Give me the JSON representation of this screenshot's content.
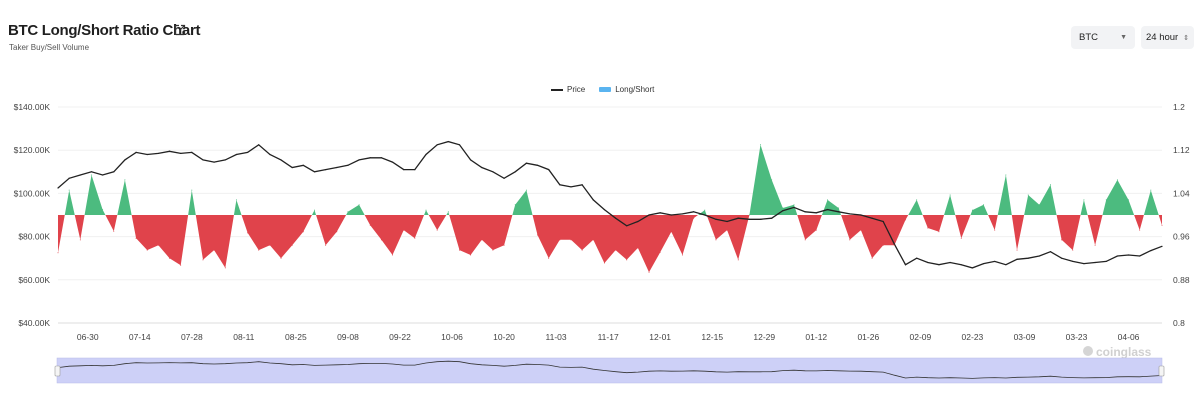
{
  "header": {
    "title": "BTC Long/Short Ratio Chart",
    "subtitle": "Taker Buy/Sell Volume",
    "external_link_icon": "external-link-icon"
  },
  "controls": {
    "symbol": "BTC",
    "interval": "24 hour"
  },
  "watermark": "coinglass",
  "colors": {
    "price": "#222222",
    "long": "#4cbb7f",
    "short": "#e0434b",
    "legend_long_short": "#5ab4f0",
    "navigator": "#cdd0f7"
  },
  "chart_data": {
    "type": "line+area",
    "title": "BTC Long/Short Ratio Chart",
    "legend": {
      "position": "top-center",
      "entries": [
        "Price",
        "Long/Short"
      ]
    },
    "grid": true,
    "left_axis": {
      "ticks": [
        "$140.00K",
        "$120.00K",
        "$100.00K",
        "$80.00K",
        "$60.00K",
        "$40.00K"
      ],
      "range": [
        40,
        140
      ],
      "unit": "K USD"
    },
    "right_axis": {
      "ticks": [
        "1.2",
        "1.12",
        "1.04",
        "0.96",
        "0.88",
        "0.8"
      ],
      "range": [
        0.8,
        1.2
      ],
      "baseline": 1.0
    },
    "x_ticks": [
      "06-30",
      "07-14",
      "07-28",
      "08-11",
      "08-25",
      "09-08",
      "09-22",
      "10-06",
      "10-20",
      "11-03",
      "11-17",
      "12-01",
      "12-15",
      "12-29",
      "01-12",
      "01-26",
      "02-09",
      "02-23",
      "03-09",
      "03-23",
      "04-06"
    ],
    "x": [
      "06-22",
      "06-25",
      "06-28",
      "07-01",
      "07-04",
      "07-07",
      "07-10",
      "07-13",
      "07-16",
      "07-19",
      "07-22",
      "07-25",
      "07-28",
      "07-31",
      "08-03",
      "08-06",
      "08-09",
      "08-12",
      "08-15",
      "08-18",
      "08-21",
      "08-24",
      "08-27",
      "08-30",
      "09-02",
      "09-05",
      "09-08",
      "09-11",
      "09-14",
      "09-17",
      "09-20",
      "09-23",
      "09-26",
      "09-29",
      "10-02",
      "10-05",
      "10-08",
      "10-11",
      "10-14",
      "10-17",
      "10-20",
      "10-23",
      "10-26",
      "10-29",
      "11-01",
      "11-04",
      "11-07",
      "11-10",
      "11-13",
      "11-16",
      "11-19",
      "11-22",
      "11-25",
      "11-28",
      "12-01",
      "12-04",
      "12-07",
      "12-10",
      "12-13",
      "12-16",
      "12-19",
      "12-22",
      "12-25",
      "12-28",
      "12-31",
      "01-03",
      "01-06",
      "01-09",
      "01-12",
      "01-15",
      "01-18",
      "01-21",
      "01-24",
      "01-27",
      "01-30",
      "02-02",
      "02-05",
      "02-08",
      "02-11",
      "02-14",
      "02-17",
      "02-20",
      "02-23",
      "02-26",
      "03-01",
      "03-04",
      "03-07",
      "03-10",
      "03-13",
      "03-16",
      "03-19",
      "03-22",
      "03-25",
      "03-28",
      "03-31",
      "04-03",
      "04-06",
      "04-09",
      "04-12",
      "04-15"
    ],
    "series": [
      {
        "name": "Price",
        "axis": "left",
        "values": [
          102.5,
          107,
          108.5,
          110,
          108.5,
          110,
          115.5,
          119,
          118,
          118.5,
          119.5,
          118.5,
          119,
          115.5,
          114.5,
          115.5,
          118,
          119,
          122.5,
          118,
          115.5,
          112,
          113,
          110,
          111,
          112,
          113,
          115.5,
          116.5,
          116.5,
          114.5,
          111,
          111,
          118,
          122.5,
          124,
          122.5,
          115.5,
          112,
          110,
          107,
          110,
          114,
          113,
          111,
          104,
          103,
          104,
          97,
          92.5,
          88.5,
          85,
          87,
          90,
          91,
          90,
          90.5,
          91.5,
          90,
          88,
          87,
          88.5,
          88,
          88,
          88.5,
          92,
          93.5,
          91.5,
          91,
          92.5,
          91.5,
          90.5,
          90,
          88.5,
          87,
          76.5,
          67,
          70,
          68,
          67,
          68,
          67,
          65.5,
          67.5,
          68.5,
          67,
          69.5,
          70,
          71,
          73,
          70,
          68.5,
          67.5,
          68,
          68.5,
          71,
          71.5,
          71,
          73.5,
          75.5
        ]
      },
      {
        "name": "Long/Short",
        "axis": "right",
        "values": [
          0.93,
          1.046,
          0.954,
          1.074,
          1.01,
          0.97,
          1.065,
          0.957,
          0.935,
          0.944,
          0.92,
          0.907,
          1.046,
          0.917,
          0.935,
          0.902,
          1.028,
          0.967,
          0.935,
          0.944,
          0.92,
          0.944,
          0.969,
          1.009,
          0.944,
          0.969,
          1.006,
          1.019,
          0.981,
          0.954,
          0.926,
          0.972,
          0.957,
          1.009,
          0.972,
          1.006,
          0.935,
          0.926,
          0.954,
          0.935,
          0.944,
          1.019,
          1.046,
          0.963,
          0.92,
          0.954,
          0.954,
          0.935,
          0.954,
          0.911,
          0.935,
          0.917,
          0.939,
          0.894,
          0.931,
          0.969,
          0.926,
          0.994,
          1.009,
          0.954,
          0.972,
          0.917,
          1.0,
          1.13,
          1.065,
          1.013,
          1.019,
          0.954,
          0.972,
          1.028,
          1.013,
          0.954,
          0.972,
          0.92,
          0.944,
          0.944,
          0.991,
          1.028,
          0.976,
          0.969,
          1.037,
          0.957,
          1.009,
          1.019,
          0.972,
          1.074,
          0.935,
          1.037,
          1.019,
          1.056,
          0.954,
          0.935,
          1.028,
          0.944,
          1.028,
          1.065,
          1.028,
          0.972,
          1.046,
          0.981
        ]
      }
    ]
  }
}
